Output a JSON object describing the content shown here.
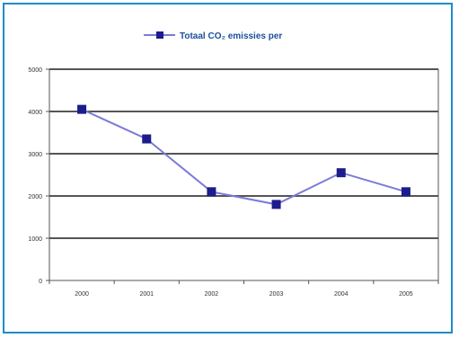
{
  "chart_data": {
    "type": "line",
    "categories": [
      "2000",
      "2001",
      "2002",
      "2003",
      "2004",
      "2005"
    ],
    "series": [
      {
        "name": "Totaal CO₂ emissies per",
        "values": [
          4050,
          3350,
          2100,
          1800,
          2550,
          2100
        ]
      }
    ],
    "ylim": [
      0,
      5000
    ],
    "yticks": [
      0,
      1000,
      2000,
      3000,
      4000,
      5000
    ],
    "gridlines": [
      1000,
      2000,
      3000,
      4000,
      5000
    ],
    "grid": true,
    "legend": "top",
    "colors": {
      "line": "#7b7bd6",
      "marker": "#1c1c8c",
      "grid": "#555555",
      "frame": "#1e8cc8",
      "legend_text": "#1a4f9c"
    }
  }
}
